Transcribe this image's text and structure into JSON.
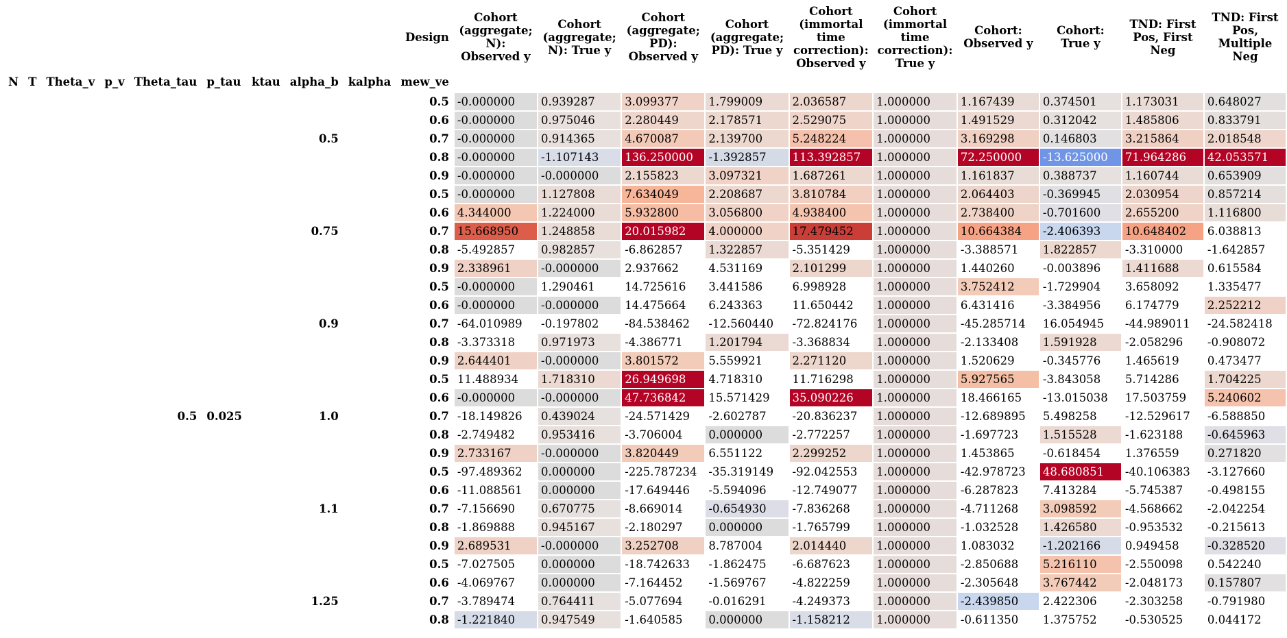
{
  "columns": [
    "Cohort (aggregate; N): Observed y",
    "Cohort (aggregate; N): True y",
    "Cohort (aggregate; PD): Observed y",
    "Cohort (aggregate; PD): True y",
    "Cohort (immortal time correction): Observed y",
    "Cohort (immortal time correction): True y",
    "Cohort: Observed y",
    "Cohort: True y",
    "TND: First Pos, First Neg",
    "TND: First Pos, Multiple Neg"
  ],
  "column_header_label": "Design",
  "index_names": [
    "N",
    "T",
    "Theta_v",
    "p_v",
    "Theta_tau",
    "p_tau",
    "ktau",
    "alpha_b",
    "kalpha",
    "mew_ve"
  ],
  "outer_levels": {
    "theta_tau": "0.5",
    "p_tau": "0.025"
  },
  "groups": [
    {
      "alpha_b": "0.5",
      "rows": [
        {
          "mew_ve": "0.5",
          "values": [
            "-0.000000",
            "0.939287",
            "3.099377",
            "1.799009",
            "2.036587",
            "1.000000",
            "1.167439",
            "0.374501",
            "1.173031",
            "0.648027"
          ],
          "colors": [
            "#dcdcdc",
            "#e8e0dc",
            "#f0d2c6",
            "#eadad3",
            "#edd6cc",
            "#e6dddb",
            "#e9dcd6",
            "#e6e0de",
            "#e9dcd6",
            "#e2dfde"
          ]
        },
        {
          "mew_ve": "0.6",
          "values": [
            "-0.000000",
            "0.975046",
            "2.280449",
            "2.178571",
            "2.529075",
            "1.000000",
            "1.491529",
            "0.312042",
            "1.485806",
            "0.833791"
          ],
          "colors": [
            "#dcdcdc",
            "#e8e0dc",
            "#eed6cc",
            "#ecd8ce",
            "#eed4c9",
            "#e6dddb",
            "#ebd9d2",
            "#e6e0de",
            "#ebd9d2",
            "#e4dedc"
          ]
        },
        {
          "mew_ve": "0.7",
          "values": [
            "-0.000000",
            "0.914365",
            "4.670087",
            "2.139700",
            "5.248224",
            "1.000000",
            "3.169298",
            "0.146803",
            "3.215864",
            "2.018548"
          ],
          "colors": [
            "#dcdcdc",
            "#e8e0dc",
            "#f3c9b7",
            "#ecd8ce",
            "#f5c1ac",
            "#e6dddb",
            "#f0d0c3",
            "#e2e0e0",
            "#f0d0c3",
            "#eed6cc"
          ]
        },
        {
          "mew_ve": "0.8",
          "values": [
            "-0.000000",
            "-1.107143",
            "136.250000",
            "-1.392857",
            "113.392857",
            "1.000000",
            "72.250000",
            "-13.625000",
            "71.964286",
            "42.053571"
          ],
          "colors": [
            "#dcdcdc",
            "#d8dde8",
            "#b40426",
            "#d5dbe6",
            "#b40426",
            "#e6dddb",
            "#b40426",
            "#7095e6",
            "#b40426",
            "#b40426"
          ]
        },
        {
          "mew_ve": "0.9",
          "values": [
            "-0.000000",
            "-0.000000",
            "2.155823",
            "3.097321",
            "1.687261",
            "1.000000",
            "1.161837",
            "0.388737",
            "1.160744",
            "0.653909"
          ],
          "colors": [
            "#dcdcdc",
            "#dcdcdc",
            "#ecd8ce",
            "#f0d2c6",
            "#ecd8cf",
            "#e6dddb",
            "#e9dcd6",
            "#e6e0de",
            "#e9dcd6",
            "#e2dfde"
          ]
        }
      ]
    },
    {
      "alpha_b": "0.75",
      "rows": [
        {
          "mew_ve": "0.5",
          "values": [
            "-0.000000",
            "1.127808",
            "7.634049",
            "2.208687",
            "3.810784",
            "1.000000",
            "2.064403",
            "-0.369945",
            "2.030954",
            "0.857214"
          ],
          "colors": [
            "#dcdcdc",
            "#e9dcd6",
            "#f7b599",
            "#ecd8ce",
            "#f1d0c2",
            "#e6dddb",
            "#eed5cb",
            "#e0e0e4",
            "#eed5cb",
            "#e4dedc"
          ]
        },
        {
          "mew_ve": "0.6",
          "values": [
            "4.344000",
            "1.224000",
            "5.932800",
            "3.056800",
            "4.938400",
            "1.000000",
            "2.738400",
            "-0.701600",
            "2.655200",
            "1.116800"
          ],
          "colors": [
            "#f4c7b3",
            "#e9dcd6",
            "#f6bda4",
            "#f0d2c6",
            "#f5c4af",
            "#e6dddb",
            "#efd3c7",
            "#dfdfe5",
            "#efd3c7",
            "#e8dcd6"
          ]
        },
        {
          "mew_ve": "0.7",
          "values": [
            "15.668950",
            "1.248858",
            "20.015982",
            "4.000000",
            "17.479452",
            "1.000000",
            "10.664384",
            "-2.406393",
            "10.648402",
            "6.038813"
          ],
          "colors": [
            "#dc5d4a",
            "#e9dcd6",
            "#b40426",
            "#f0d2c6",
            "#cb3e38",
            "#e6dddb",
            "#f6a385",
            "#c8d6ee",
            "#f6a385",
            "#ffffff"
          ]
        },
        {
          "mew_ve": "0.8",
          "values": [
            "-5.492857",
            "0.982857",
            "-6.862857",
            "1.322857",
            "-5.351429",
            "1.000000",
            "-3.388571",
            "1.822857",
            "-3.310000",
            "-1.642857"
          ],
          "colors": [
            "#ffffff",
            "#e8e0dc",
            "#ffffff",
            "#eadad3",
            "#ffffff",
            "#e6dddb",
            "#ffffff",
            "#ecd8ce",
            "#ffffff",
            "#ffffff"
          ]
        },
        {
          "mew_ve": "0.9",
          "values": [
            "2.338961",
            "-0.000000",
            "2.937662",
            "4.531169",
            "2.101299",
            "1.000000",
            "1.440260",
            "-0.003896",
            "1.411688",
            "0.615584"
          ],
          "colors": [
            "#efd2c5",
            "#dcdcdc",
            "#ffffff",
            "#ffffff",
            "#edd6cc",
            "#e6dddb",
            "#ffffff",
            "#ffffff",
            "#ebd9d2",
            "#ffffff"
          ]
        }
      ]
    },
    {
      "alpha_b": "0.9",
      "rows": [
        {
          "mew_ve": "0.5",
          "values": [
            "-0.000000",
            "1.290461",
            "14.725616",
            "3.441586",
            "6.998928",
            "1.000000",
            "3.752412",
            "-1.729904",
            "3.658092",
            "1.335477"
          ],
          "colors": [
            "#dcdcdc",
            "#ffffff",
            "#ffffff",
            "#ffffff",
            "#ffffff",
            "#e6dddb",
            "#f2cbb9",
            "#ffffff",
            "#ffffff",
            "#ffffff"
          ]
        },
        {
          "mew_ve": "0.6",
          "values": [
            "-0.000000",
            "-0.000000",
            "14.475664",
            "6.243363",
            "11.650442",
            "1.000000",
            "6.431416",
            "-3.384956",
            "6.174779",
            "2.252212"
          ],
          "colors": [
            "#dcdcdc",
            "#dcdcdc",
            "#ffffff",
            "#ffffff",
            "#ffffff",
            "#e6dddb",
            "#ffffff",
            "#ffffff",
            "#ffffff",
            "#efd2c5"
          ]
        },
        {
          "mew_ve": "0.7",
          "values": [
            "-64.010989",
            "-0.197802",
            "-84.538462",
            "-12.560440",
            "-72.824176",
            "1.000000",
            "-45.285714",
            "16.054945",
            "-44.989011",
            "-24.582418"
          ],
          "colors": [
            "#ffffff",
            "#ffffff",
            "#ffffff",
            "#ffffff",
            "#ffffff",
            "#e6dddb",
            "#ffffff",
            "#ffffff",
            "#ffffff",
            "#ffffff"
          ]
        },
        {
          "mew_ve": "0.8",
          "values": [
            "-3.373318",
            "0.971973",
            "-4.386771",
            "1.201794",
            "-3.368834",
            "1.000000",
            "-2.133408",
            "1.591928",
            "-2.058296",
            "-0.908072"
          ],
          "colors": [
            "#ffffff",
            "#e8e0dc",
            "#ffffff",
            "#eadad3",
            "#ffffff",
            "#e6dddb",
            "#ffffff",
            "#ebd9d2",
            "#ffffff",
            "#ffffff"
          ]
        },
        {
          "mew_ve": "0.9",
          "values": [
            "2.644401",
            "-0.000000",
            "3.801572",
            "5.559921",
            "2.271120",
            "1.000000",
            "1.520629",
            "-0.345776",
            "1.465619",
            "0.473477"
          ],
          "colors": [
            "#efd2c5",
            "#dcdcdc",
            "#f2cbb9",
            "#ffffff",
            "#edd6cc",
            "#e6dddb",
            "#ffffff",
            "#ffffff",
            "#ffffff",
            "#ffffff"
          ]
        }
      ]
    },
    {
      "alpha_b": "1.0",
      "rows": [
        {
          "mew_ve": "0.5",
          "values": [
            "11.488934",
            "1.718310",
            "26.949698",
            "4.718310",
            "11.716298",
            "1.000000",
            "5.927565",
            "-3.843058",
            "5.714286",
            "1.704225"
          ],
          "colors": [
            "#ffffff",
            "#ebd9d2",
            "#b40426",
            "#ffffff",
            "#ffffff",
            "#e6dddb",
            "#f5bfa6",
            "#ffffff",
            "#ffffff",
            "#ecd8ce"
          ]
        },
        {
          "mew_ve": "0.6",
          "values": [
            "-0.000000",
            "-0.000000",
            "47.736842",
            "15.571429",
            "35.090226",
            "1.000000",
            "18.466165",
            "-13.015038",
            "17.503759",
            "5.240602"
          ],
          "colors": [
            "#dcdcdc",
            "#dcdcdc",
            "#b40426",
            "#ffffff",
            "#b40426",
            "#e6dddb",
            "#ffffff",
            "#ffffff",
            "#ffffff",
            "#f5c3ad"
          ]
        },
        {
          "mew_ve": "0.7",
          "values": [
            "-18.149826",
            "0.439024",
            "-24.571429",
            "-2.602787",
            "-20.836237",
            "1.000000",
            "-12.689895",
            "5.498258",
            "-12.529617",
            "-6.588850"
          ],
          "colors": [
            "#ffffff",
            "#e6e0de",
            "#ffffff",
            "#ffffff",
            "#ffffff",
            "#e6dddb",
            "#ffffff",
            "#ffffff",
            "#ffffff",
            "#ffffff"
          ]
        },
        {
          "mew_ve": "0.8",
          "values": [
            "-2.749482",
            "0.953416",
            "-3.706004",
            "0.000000",
            "-2.772257",
            "1.000000",
            "-1.697723",
            "1.515528",
            "-1.623188",
            "-0.645963"
          ],
          "colors": [
            "#ffffff",
            "#e8e0dc",
            "#ffffff",
            "#dcdcdc",
            "#ffffff",
            "#e6dddb",
            "#ffffff",
            "#ebd9d2",
            "#ffffff",
            "#dfdfe5"
          ]
        },
        {
          "mew_ve": "0.9",
          "values": [
            "2.733167",
            "-0.000000",
            "3.820449",
            "6.551122",
            "2.299252",
            "1.000000",
            "1.453865",
            "-0.618454",
            "1.376559",
            "0.271820"
          ],
          "colors": [
            "#efd2c5",
            "#dcdcdc",
            "#f2cbb9",
            "#ffffff",
            "#edd6cc",
            "#e6dddb",
            "#ffffff",
            "#ffffff",
            "#ffffff",
            "#e2e0e0"
          ]
        }
      ]
    },
    {
      "alpha_b": "1.1",
      "rows": [
        {
          "mew_ve": "0.5",
          "values": [
            "-97.489362",
            "0.000000",
            "-225.787234",
            "-35.319149",
            "-92.042553",
            "1.000000",
            "-42.978723",
            "48.680851",
            "-40.106383",
            "-3.127660"
          ],
          "colors": [
            "#ffffff",
            "#dcdcdc",
            "#ffffff",
            "#ffffff",
            "#ffffff",
            "#e6dddb",
            "#ffffff",
            "#b40426",
            "#ffffff",
            "#ffffff"
          ]
        },
        {
          "mew_ve": "0.6",
          "values": [
            "-11.088561",
            "0.000000",
            "-17.649446",
            "-5.594096",
            "-12.749077",
            "1.000000",
            "-6.287823",
            "7.413284",
            "-5.745387",
            "-0.498155"
          ],
          "colors": [
            "#ffffff",
            "#dcdcdc",
            "#ffffff",
            "#ffffff",
            "#ffffff",
            "#e6dddb",
            "#ffffff",
            "#ffffff",
            "#ffffff",
            "#ffffff"
          ]
        },
        {
          "mew_ve": "0.7",
          "values": [
            "-7.156690",
            "0.670775",
            "-8.669014",
            "-0.654930",
            "-7.836268",
            "1.000000",
            "-4.711268",
            "3.098592",
            "-4.568662",
            "-2.042254"
          ],
          "colors": [
            "#ffffff",
            "#e6e0de",
            "#ffffff",
            "#dcdde6",
            "#ffffff",
            "#e6dddb",
            "#ffffff",
            "#f2cbb9",
            "#ffffff",
            "#ffffff"
          ]
        },
        {
          "mew_ve": "0.8",
          "values": [
            "-1.869888",
            "0.945167",
            "-2.180297",
            "0.000000",
            "-1.765799",
            "1.000000",
            "-1.032528",
            "1.426580",
            "-0.953532",
            "-0.215613"
          ],
          "colors": [
            "#ffffff",
            "#e8e0dc",
            "#ffffff",
            "#dcdcdc",
            "#ffffff",
            "#e6dddb",
            "#ffffff",
            "#ebd9d2",
            "#ffffff",
            "#ffffff"
          ]
        },
        {
          "mew_ve": "0.9",
          "values": [
            "2.689531",
            "-0.000000",
            "3.252708",
            "8.787004",
            "2.014440",
            "1.000000",
            "1.083032",
            "-1.202166",
            "0.949458",
            "-0.328520"
          ],
          "colors": [
            "#efd2c5",
            "#dcdcdc",
            "#f0d0c3",
            "#ffffff",
            "#edd6cc",
            "#e6dddb",
            "#ffffff",
            "#d6dbe8",
            "#ffffff",
            "#dfdfe5"
          ]
        }
      ]
    },
    {
      "alpha_b": "1.25",
      "rows": [
        {
          "mew_ve": "0.5",
          "values": [
            "-7.027505",
            "0.000000",
            "-18.742633",
            "-1.862475",
            "-6.687623",
            "1.000000",
            "-2.850688",
            "5.216110",
            "-2.550098",
            "0.542240"
          ],
          "colors": [
            "#ffffff",
            "#dcdcdc",
            "#ffffff",
            "#ffffff",
            "#ffffff",
            "#e6dddb",
            "#ffffff",
            "#f5c3ad",
            "#ffffff",
            "#ffffff"
          ]
        },
        {
          "mew_ve": "0.6",
          "values": [
            "-4.069767",
            "0.000000",
            "-7.164452",
            "-1.569767",
            "-4.822259",
            "1.000000",
            "-2.305648",
            "3.767442",
            "-2.048173",
            "0.157807"
          ],
          "colors": [
            "#ffffff",
            "#dcdcdc",
            "#ffffff",
            "#ffffff",
            "#ffffff",
            "#e6dddb",
            "#ffffff",
            "#f2cbb9",
            "#ffffff",
            "#e2e0e0"
          ]
        },
        {
          "mew_ve": "0.7",
          "values": [
            "-3.789474",
            "0.764411",
            "-5.077694",
            "-0.016291",
            "-4.249373",
            "1.000000",
            "-2.439850",
            "2.422306",
            "-2.303258",
            "-0.791980"
          ],
          "colors": [
            "#ffffff",
            "#e6e0de",
            "#ffffff",
            "#ffffff",
            "#ffffff",
            "#e6dddb",
            "#c8d6ee",
            "#ffffff",
            "#ffffff",
            "#ffffff"
          ]
        },
        {
          "mew_ve": "0.8",
          "values": [
            "-1.221840",
            "0.947549",
            "-1.640585",
            "0.000000",
            "-1.158212",
            "1.000000",
            "-0.611350",
            "1.375752",
            "-0.530525",
            "0.044172"
          ],
          "colors": [
            "#d6dbe8",
            "#e8e0dc",
            "#ffffff",
            "#dcdcdc",
            "#d8dde8",
            "#e6dddb",
            "#ffffff",
            "#ffffff",
            "#ffffff",
            "#ffffff"
          ]
        }
      ]
    }
  ]
}
